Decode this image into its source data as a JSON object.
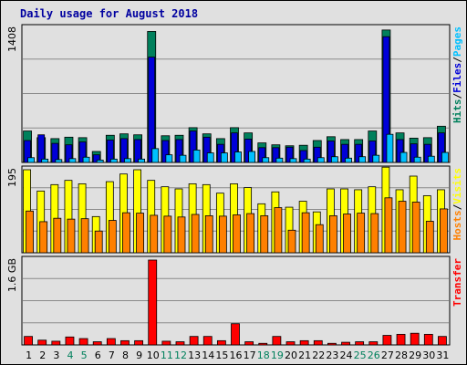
{
  "chart_data": {
    "type": "bar",
    "title": "Daily usage for August 2018",
    "categories": [
      "1",
      "2",
      "3",
      "4",
      "5",
      "6",
      "7",
      "8",
      "9",
      "10",
      "11",
      "12",
      "13",
      "14",
      "15",
      "16",
      "17",
      "18",
      "19",
      "20",
      "21",
      "22",
      "23",
      "24",
      "25",
      "26",
      "27",
      "28",
      "29",
      "30",
      "31"
    ],
    "weekend_days": [
      "4",
      "5",
      "11",
      "12",
      "18",
      "19",
      "25",
      "26"
    ],
    "colors": {
      "background": "#e0e0e0",
      "title": "#0000a0",
      "hits": "#00805c",
      "files": "#0000d8",
      "pages": "#00c0ff",
      "visits": "#ffff00",
      "hosts": "#ff8000",
      "transfer": "#ff0000",
      "weekend_label": "#00805c",
      "grid": "#8a8a8a"
    },
    "panels": [
      {
        "id": "hits_files_pages",
        "tick_label": "1408",
        "tick_value": 1408,
        "side_label_parts": [
          {
            "text": "Hits",
            "color": "#00805c"
          },
          {
            "text": "/",
            "color": "#000000"
          },
          {
            "text": "Files",
            "color": "#0000d8"
          },
          {
            "text": "/",
            "color": "#000000"
          },
          {
            "text": "Pages",
            "color": "#00c0ff"
          }
        ],
        "series": [
          {
            "name": "Hits",
            "color": "#00805c",
            "values": [
              330,
              260,
              250,
              265,
              260,
              115,
              285,
              300,
              290,
              1375,
              280,
              285,
              365,
              300,
              250,
              365,
              310,
              205,
              185,
              175,
              180,
              230,
              270,
              240,
              240,
              330,
              1390,
              310,
              255,
              260,
              380
            ]
          },
          {
            "name": "Files",
            "color": "#0000d8",
            "values": [
              230,
              290,
              200,
              185,
              215,
              80,
              235,
              250,
              240,
              1105,
              230,
              240,
              330,
              265,
              190,
              310,
              245,
              155,
              155,
              160,
              125,
              160,
              225,
              190,
              190,
              225,
              1320,
              240,
              195,
              190,
              310
            ]
          },
          {
            "name": "Pages",
            "color": "#00c0ff",
            "values": [
              50,
              35,
              30,
              40,
              55,
              25,
              35,
              40,
              35,
              145,
              80,
              75,
              130,
              100,
              100,
              110,
              115,
              50,
              45,
              40,
              35,
              50,
              60,
              45,
              60,
              75,
              295,
              105,
              55,
              65,
              105
            ]
          }
        ]
      },
      {
        "id": "visits_hosts",
        "tick_label": "195",
        "tick_value": 195,
        "side_label_parts": [
          {
            "text": "Hosts",
            "color": "#ff8000"
          },
          {
            "text": "/",
            "color": "#000000"
          },
          {
            "text": "Visits",
            "color": "#ffff00"
          }
        ],
        "series": [
          {
            "name": "Visits",
            "color": "#ffff00",
            "values": [
              195,
              145,
              160,
              170,
              162,
              85,
              167,
              185,
              195,
              170,
              155,
              150,
              162,
              160,
              140,
              162,
              153,
              115,
              143,
              107,
              121,
              96,
              150,
              150,
              148,
              155,
              201,
              148,
              180,
              134,
              148
            ]
          },
          {
            "name": "Hosts",
            "color": "#ff8000",
            "values": [
              98,
              73,
              81,
              79,
              80,
              51,
              76,
              94,
              93,
              88,
              86,
              84,
              90,
              87,
              86,
              89,
              92,
              87,
              106,
              53,
              94,
              66,
              87,
              91,
              93,
              92,
              129,
              121,
              119,
              74,
              103
            ]
          }
        ]
      },
      {
        "id": "transfer",
        "tick_label": "1.6 GB",
        "tick_value": 1.6,
        "unit": "GB",
        "side_label_parts": [
          {
            "text": "Transfer",
            "color": "#ff0000"
          }
        ],
        "series": [
          {
            "name": "Transfer",
            "color": "#ff0000",
            "values": [
              0.16,
              0.09,
              0.07,
              0.15,
              0.12,
              0.06,
              0.12,
              0.08,
              0.08,
              1.6,
              0.07,
              0.06,
              0.16,
              0.16,
              0.08,
              0.4,
              0.06,
              0.03,
              0.16,
              0.06,
              0.08,
              0.08,
              0.03,
              0.05,
              0.06,
              0.06,
              0.18,
              0.2,
              0.22,
              0.2,
              0.16
            ]
          }
        ]
      }
    ]
  }
}
